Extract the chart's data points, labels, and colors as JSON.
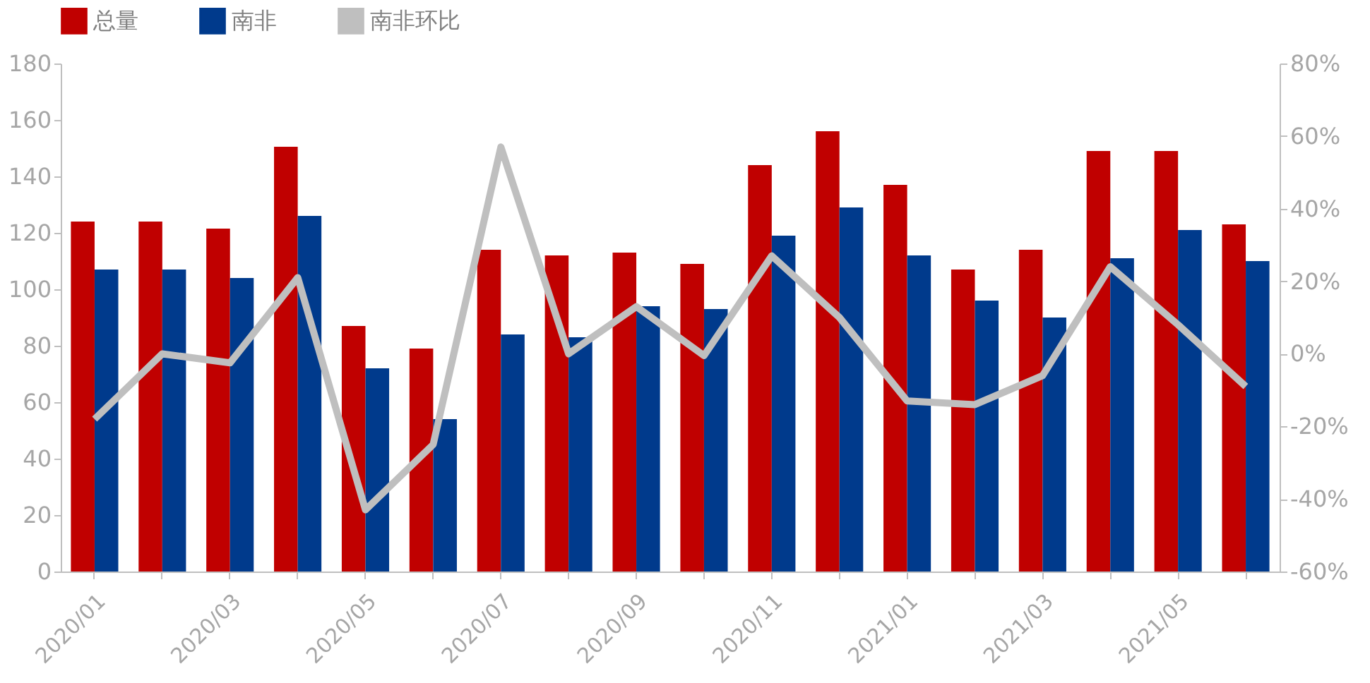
{
  "chart_data": {
    "type": "bar",
    "categories": [
      "2020/01",
      null,
      "2020/03",
      null,
      "2020/05",
      null,
      "2020/07",
      null,
      "2020/09",
      null,
      "2020/11",
      null,
      "2021/01",
      null,
      "2021/03",
      null,
      "2021/05",
      null
    ],
    "series": [
      {
        "name": "总量",
        "color": "#c00000",
        "values": [
          124,
          124,
          121.5,
          150.5,
          87,
          79,
          114,
          112,
          113,
          109,
          144,
          156,
          137,
          107,
          114,
          149,
          149,
          123
        ]
      },
      {
        "name": "南非",
        "color": "#003a8c",
        "values": [
          107,
          107,
          104,
          126,
          72,
          54,
          84,
          83,
          94,
          93,
          119,
          129,
          112,
          96,
          90,
          111,
          121,
          110
        ]
      },
      {
        "name": "南非环比",
        "type": "line",
        "axis": "y2",
        "color": "#bfbfbf",
        "values": [
          -18,
          0,
          -2.5,
          21,
          -43,
          -25,
          57,
          0,
          13,
          -0.5,
          27,
          10,
          -13,
          -14,
          -6,
          24,
          8,
          -9
        ]
      }
    ],
    "ylim": [
      0,
      180
    ],
    "yticks": [
      0,
      20,
      40,
      60,
      80,
      100,
      120,
      140,
      160,
      180
    ],
    "y2lim": [
      -60,
      80
    ],
    "y2ticks": [
      {
        "value": -60,
        "label": "-60%"
      },
      {
        "value": -40,
        "label": "-40%"
      },
      {
        "value": -20,
        "label": "-20%"
      },
      {
        "value": 0,
        "label": "0%"
      },
      {
        "value": 20,
        "label": "20%"
      },
      {
        "value": 40,
        "label": "40%"
      },
      {
        "value": 60,
        "label": "60%"
      },
      {
        "value": 80,
        "label": "80%"
      }
    ],
    "grid": false,
    "legend": "top",
    "line_style": "solid",
    "marker": "none"
  }
}
